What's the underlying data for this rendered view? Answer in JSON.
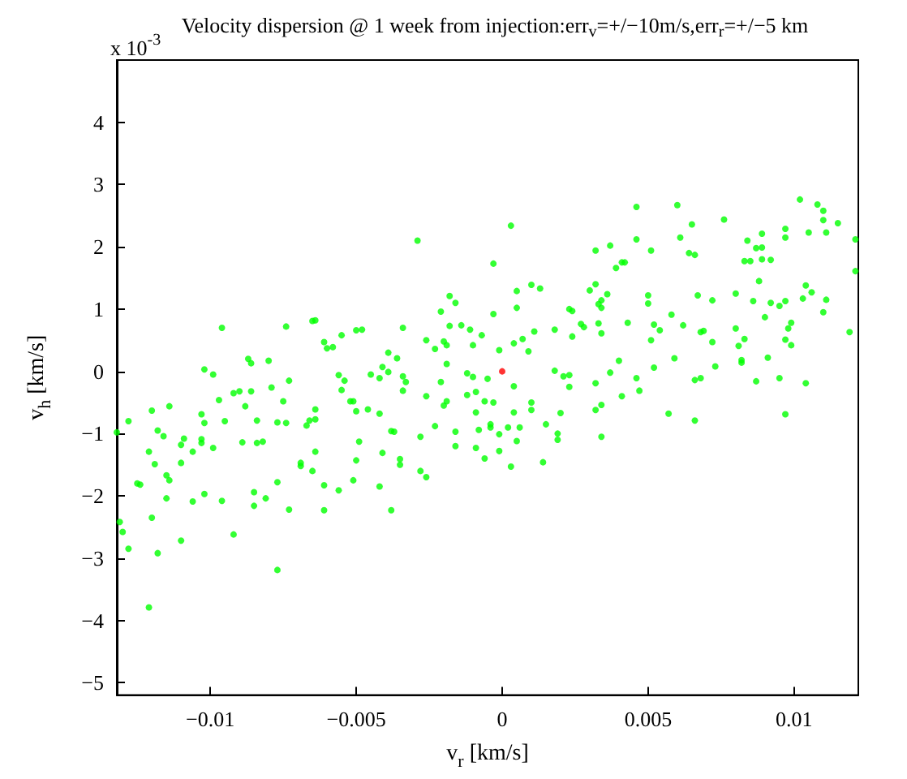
{
  "chart_data": {
    "type": "scatter",
    "title": "Velocity dispersion @ 1 week from injection:err$_{v}$=+/−10m/s,err$_{r}$=+/−5 km",
    "xlabel": "v$_{r}$ [km/s]",
    "ylabel": "v$_{h}$ [km/s]",
    "annotations": [
      "x 10$^{-3}$"
    ],
    "xlim": [
      -0.0132,
      0.0122
    ],
    "xticks": [
      -0.01,
      -0.005,
      0,
      0.005,
      0.01
    ],
    "ylim": [
      -5.2,
      5
    ],
    "yticks": [
      -5,
      -4,
      -3,
      -2,
      -1,
      0,
      1,
      2,
      3,
      4
    ],
    "grid": false,
    "marker": "circle",
    "series": [
      {
        "color": "#00ff00",
        "x": [
          -0.0102,
          -0.0099,
          -0.0096,
          -0.0087,
          -0.0086,
          -0.008,
          -0.0074,
          -0.0073,
          -0.0065,
          -0.0064,
          -0.0061,
          -0.006,
          -0.0058,
          -0.0056,
          -0.0055,
          -0.0054,
          -0.005,
          -0.0048,
          -0.0029,
          0.0003,
          -0.0003,
          0.0032,
          0.0037,
          0.0041,
          0.0039,
          0.0032,
          0.003,
          0.0036,
          0.0034,
          0.0033,
          0.0034,
          0.001,
          0.0013,
          0.0005,
          0.0005,
          -0.0018,
          -0.0016,
          -0.0021,
          -0.0003,
          -0.0034,
          -0.0018,
          -0.0014,
          -0.0011,
          -0.0007,
          -0.0026,
          -0.002,
          -0.0019,
          -0.001,
          -0.0023,
          -0.0001,
          0.0004,
          0.0007,
          0.0011,
          0.0009,
          0.0018,
          0.0024,
          0.0023,
          0.0024,
          0.0027,
          0.0028,
          0.0033,
          0.0034,
          0.0043,
          0.004,
          -0.0039,
          -0.0036,
          -0.0041,
          -0.0045,
          -0.0042,
          -0.0039,
          -0.0034,
          -0.0033,
          -0.0021,
          -0.0019,
          -0.0012,
          -0.001,
          -0.0005,
          0.0018,
          0.0021,
          0.0023,
          0.0032,
          0.0037,
          0.0046,
          0.006,
          0.0065,
          0.0076,
          0.0102,
          0.0108,
          0.011,
          0.011,
          0.0115,
          0.0105,
          0.0111,
          0.0097,
          0.0097,
          0.0089,
          0.0084,
          0.0046,
          0.0061,
          0.0051,
          0.0064,
          0.0066,
          0.0087,
          0.0089,
          0.0083,
          0.0085,
          0.0089,
          0.0092,
          0.0121,
          0.0121,
          0.0042,
          0.0088,
          0.0104,
          0.0106,
          0.0103,
          0.0111,
          0.005,
          0.005,
          0.0067,
          0.0072,
          0.008,
          0.0086,
          0.0092,
          0.0095,
          0.0097,
          0.011,
          0.009,
          0.0058,
          0.0052,
          0.0054,
          0.0062,
          0.0068,
          0.0069,
          0.008,
          0.0099,
          0.0098,
          0.0097,
          0.0099,
          0.0083,
          0.0081,
          0.0051,
          0.0072,
          0.0119,
          0.0059,
          0.0073,
          0.0052,
          0.0082,
          0.0082,
          0.0091,
          0.0046,
          0.0066,
          0.0068,
          0.0087,
          0.0095,
          0.0104,
          0.0041,
          0.0047,
          0.0057,
          0.0066,
          0.0097,
          -0.0132,
          -0.0128,
          -0.012,
          -0.0114,
          -0.0131,
          -0.013,
          -0.0128,
          -0.0125,
          -0.0124,
          -0.0121,
          -0.012,
          -0.0121,
          -0.0119,
          -0.0118,
          -0.0118,
          -0.0116,
          -0.0115,
          -0.0114,
          -0.0115,
          -0.011,
          -0.0109,
          -0.011,
          -0.011,
          -0.0106,
          -0.0106,
          -0.0103,
          -0.0103,
          -0.0103,
          -0.0102,
          -0.0102,
          -0.0099,
          -0.0097,
          -0.0096,
          -0.0095,
          -0.0092,
          -0.0092,
          -0.009,
          -0.0089,
          -0.0088,
          -0.0086,
          -0.0084,
          -0.0084,
          -0.0082,
          -0.0085,
          -0.0085,
          -0.0081,
          -0.0079,
          -0.0077,
          -0.0077,
          -0.0077,
          -0.0075,
          -0.0074,
          -0.0073,
          -0.0069,
          -0.0069,
          -0.0067,
          -0.0066,
          -0.0064,
          -0.0064,
          -0.0064,
          -0.0065,
          -0.0061,
          -0.0061,
          -0.0056,
          -0.0055,
          -0.0052,
          -0.0051,
          -0.0051,
          -0.005,
          -0.0049,
          -0.005,
          -0.0046,
          -0.0034,
          -0.0042,
          -0.0041,
          -0.0042,
          -0.0038,
          -0.0038,
          -0.0037,
          -0.0035,
          -0.0035,
          -0.0028,
          -0.0026,
          -0.0028,
          -0.0026,
          -0.0023,
          -0.002,
          -0.0019,
          -0.0016,
          -0.0016,
          -0.0012,
          -0.0009,
          -0.0006,
          -0.0003,
          -0.0009,
          -0.0008,
          -0.0004,
          -0.0004,
          -0.0009,
          -0.0006,
          -0.0001,
          0.0002,
          -0.0001,
          0.0004,
          0.0004,
          0.0006,
          0.0005,
          0.0003,
          0.001,
          0.001,
          0.0015,
          0.0014,
          0.0019,
          0.0019,
          0.002,
          0.0023,
          0.0032,
          0.0034,
          0.0034
        ],
        "values": [
          0.03,
          -0.05,
          0.7,
          0.2,
          0.13,
          0.17,
          0.72,
          -0.15,
          0.81,
          0.82,
          0.47,
          0.37,
          0.39,
          -0.06,
          0.58,
          -0.15,
          0.66,
          0.67,
          2.1,
          2.34,
          1.73,
          1.94,
          2.02,
          1.75,
          1.66,
          1.4,
          1.3,
          1.24,
          1.14,
          1.08,
          1.02,
          1.39,
          1.33,
          1.29,
          1.02,
          1.21,
          1.1,
          0.96,
          0.92,
          0.7,
          0.73,
          0.74,
          0.67,
          0.58,
          0.5,
          0.48,
          0.42,
          0.42,
          0.36,
          0.34,
          0.45,
          0.52,
          0.64,
          0.32,
          0.67,
          0.56,
          1.0,
          0.97,
          0.76,
          0.71,
          0.77,
          0.61,
          0.78,
          0.17,
          0.3,
          0.21,
          0.07,
          -0.05,
          -0.11,
          -0.01,
          -0.08,
          -0.17,
          -0.17,
          0.12,
          -0.03,
          -0.09,
          -0.12,
          0.01,
          -0.08,
          -0.06,
          -0.19,
          -0.02,
          2.64,
          2.67,
          2.36,
          2.44,
          2.76,
          2.68,
          2.58,
          2.43,
          2.38,
          2.23,
          2.23,
          2.29,
          2.15,
          2.21,
          2.1,
          2.12,
          2.15,
          1.94,
          1.9,
          1.87,
          1.98,
          1.99,
          1.77,
          1.77,
          1.8,
          1.79,
          2.12,
          1.61,
          1.75,
          1.45,
          1.38,
          1.27,
          1.17,
          1.15,
          1.22,
          1.09,
          1.22,
          1.14,
          1.25,
          1.13,
          1.1,
          1.05,
          1.13,
          0.95,
          0.87,
          0.91,
          0.75,
          0.66,
          0.74,
          0.63,
          0.65,
          0.69,
          0.78,
          0.69,
          0.51,
          0.42,
          0.52,
          0.41,
          0.5,
          0.47,
          0.63,
          0.21,
          0.08,
          0.06,
          0.14,
          0.18,
          0.22,
          -0.11,
          -0.14,
          -0.11,
          -0.16,
          -0.11,
          -0.19,
          -0.4,
          -0.31,
          -0.68,
          -0.79,
          -0.69,
          -0.98,
          -0.8,
          -0.63,
          -0.56,
          -2.42,
          -2.58,
          -2.85,
          -1.8,
          -1.82,
          -1.29,
          -2.35,
          -3.79,
          -1.49,
          -0.95,
          -2.92,
          -1.04,
          -1.67,
          -1.75,
          -2.04,
          -1.18,
          -1.08,
          -1.47,
          -2.72,
          -1.29,
          -2.09,
          -0.69,
          -1.09,
          -1.15,
          -0.83,
          -1.97,
          -1.23,
          -0.46,
          -2.08,
          -0.8,
          -0.35,
          -2.62,
          -0.32,
          -1.14,
          -0.56,
          -0.32,
          -0.79,
          -1.15,
          -1.13,
          -1.94,
          -2.16,
          -2.04,
          -0.26,
          -0.82,
          -1.78,
          -3.19,
          -0.48,
          -0.83,
          -2.22,
          -1.47,
          -1.52,
          -0.87,
          -0.79,
          -0.77,
          -0.61,
          -1.29,
          -1.6,
          -1.83,
          -2.23,
          -1.91,
          -0.3,
          -0.48,
          -0.48,
          -1.75,
          -0.64,
          -1.13,
          -1.43,
          -0.61,
          -0.31,
          -0.68,
          -1.31,
          -1.85,
          -2.23,
          -0.96,
          -0.97,
          -1.41,
          -1.5,
          -1.6,
          -1.7,
          -1.05,
          -0.4,
          -0.88,
          -0.55,
          -0.48,
          -1.2,
          -0.97,
          -0.38,
          -0.33,
          -0.48,
          -0.5,
          -0.66,
          -0.94,
          -0.85,
          -0.9,
          -1.23,
          -1.4,
          -1.28,
          -0.9,
          -1.01,
          -0.24,
          -0.66,
          -0.9,
          -1.12,
          -1.53,
          -0.5,
          -0.62,
          -0.85,
          -1.46,
          -1.0,
          -1.1,
          -0.67,
          -0.25,
          -0.62,
          -0.54,
          -1.05
        ]
      },
      {
        "color": "#ff0000",
        "x": [
          0
        ],
        "values": [
          0
        ]
      }
    ]
  }
}
